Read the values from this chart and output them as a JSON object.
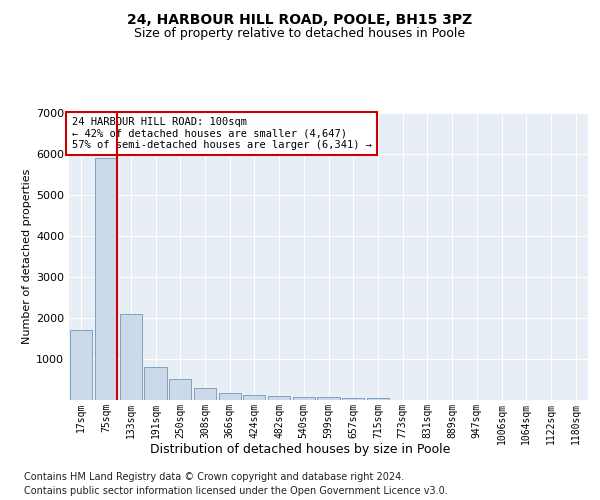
{
  "title_line1": "24, HARBOUR HILL ROAD, POOLE, BH15 3PZ",
  "title_line2": "Size of property relative to detached houses in Poole",
  "xlabel": "Distribution of detached houses by size in Poole",
  "ylabel": "Number of detached properties",
  "categories": [
    "17sqm",
    "75sqm",
    "133sqm",
    "191sqm",
    "250sqm",
    "308sqm",
    "366sqm",
    "424sqm",
    "482sqm",
    "540sqm",
    "599sqm",
    "657sqm",
    "715sqm",
    "773sqm",
    "831sqm",
    "889sqm",
    "947sqm",
    "1006sqm",
    "1064sqm",
    "1122sqm",
    "1180sqm"
  ],
  "values": [
    1700,
    5900,
    2100,
    800,
    500,
    300,
    180,
    120,
    90,
    75,
    65,
    55,
    50,
    0,
    0,
    0,
    0,
    0,
    0,
    0,
    0
  ],
  "bar_color": "#ccd9ea",
  "bar_edgecolor": "#7096b8",
  "vline_color": "#cc0000",
  "vline_bin_index": 1,
  "annotation_text": "24 HARBOUR HILL ROAD: 100sqm\n← 42% of detached houses are smaller (4,647)\n57% of semi-detached houses are larger (6,341) →",
  "annotation_box_edgecolor": "#cc0000",
  "annotation_box_facecolor": "#ffffff",
  "ylim": [
    0,
    7000
  ],
  "yticks": [
    0,
    1000,
    2000,
    3000,
    4000,
    5000,
    6000,
    7000
  ],
  "footer_line1": "Contains HM Land Registry data © Crown copyright and database right 2024.",
  "footer_line2": "Contains public sector information licensed under the Open Government Licence v3.0.",
  "background_color": "#ffffff",
  "plot_background": "#e8eef6",
  "grid_color": "#ffffff",
  "title_fontsize": 10,
  "subtitle_fontsize": 9,
  "ylabel_fontsize": 8,
  "xlabel_fontsize": 9,
  "tick_fontsize": 7,
  "annot_fontsize": 7.5,
  "footer_fontsize": 7
}
